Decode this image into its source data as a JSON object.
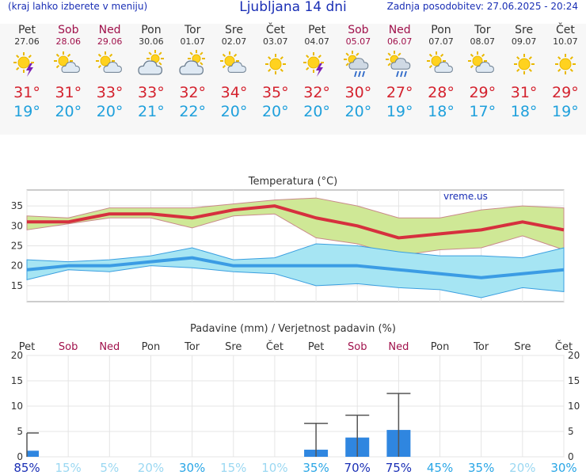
{
  "header": {
    "subtitle": "(kraj lahko izberete v meniju)",
    "title": "Ljubljana 14 dni",
    "updated": "Zadnja posodobitev: 27.06.2025 - 20:24"
  },
  "colors": {
    "max": "#d4232f",
    "min": "#1fa0dc",
    "weekday": "#333333",
    "weekend": "#a0114b",
    "precip_bar": "#2f86e0"
  },
  "days": [
    {
      "name": "Pet",
      "date": "27.06",
      "weekend": false,
      "icon": "sun-storm-icon",
      "max": "31°",
      "min": "19°"
    },
    {
      "name": "Sob",
      "date": "28.06",
      "weekend": true,
      "icon": "sun-cloud-icon",
      "max": "31°",
      "min": "20°"
    },
    {
      "name": "Ned",
      "date": "29.06",
      "weekend": true,
      "icon": "sun-cloud-icon",
      "max": "33°",
      "min": "20°"
    },
    {
      "name": "Pon",
      "date": "30.06",
      "weekend": false,
      "icon": "cloudy-icon",
      "max": "33°",
      "min": "21°"
    },
    {
      "name": "Tor",
      "date": "01.07",
      "weekend": false,
      "icon": "cloudy-icon",
      "max": "32°",
      "min": "22°"
    },
    {
      "name": "Sre",
      "date": "02.07",
      "weekend": false,
      "icon": "sun-cloud-icon",
      "max": "34°",
      "min": "20°"
    },
    {
      "name": "Čet",
      "date": "03.07",
      "weekend": false,
      "icon": "sun-icon",
      "max": "35°",
      "min": "20°"
    },
    {
      "name": "Pet",
      "date": "04.07",
      "weekend": false,
      "icon": "sun-storm-icon",
      "max": "32°",
      "min": "20°"
    },
    {
      "name": "Sob",
      "date": "05.07",
      "weekend": true,
      "icon": "sun-rain-icon",
      "max": "30°",
      "min": "20°"
    },
    {
      "name": "Ned",
      "date": "06.07",
      "weekend": true,
      "icon": "sun-rain-icon",
      "max": "27°",
      "min": "19°"
    },
    {
      "name": "Pon",
      "date": "07.07",
      "weekend": false,
      "icon": "sun-cloud-icon",
      "max": "28°",
      "min": "18°"
    },
    {
      "name": "Tor",
      "date": "08.07",
      "weekend": false,
      "icon": "sun-cloud-icon",
      "max": "29°",
      "min": "17°"
    },
    {
      "name": "Sre",
      "date": "09.07",
      "weekend": false,
      "icon": "sun-icon",
      "max": "31°",
      "min": "18°"
    },
    {
      "name": "Čet",
      "date": "10.07",
      "weekend": false,
      "icon": "sun-icon",
      "max": "29°",
      "min": "19°"
    }
  ],
  "chart_data": [
    {
      "type": "line",
      "title": "Temperatura (°C)",
      "watermark": "vreme.us",
      "ylim": [
        11,
        39
      ],
      "yticks": [
        15,
        20,
        25,
        30,
        35
      ],
      "grid": true,
      "series": [
        {
          "name": "max",
          "values": [
            31,
            31,
            33,
            33,
            32,
            34,
            35,
            32,
            30,
            27,
            28,
            29,
            31,
            29
          ]
        },
        {
          "name": "min",
          "values": [
            19,
            20,
            20,
            21,
            22,
            20,
            20,
            20,
            20,
            19,
            18,
            17,
            18,
            19
          ]
        }
      ],
      "max_band_upper": [
        32.5,
        32,
        34.5,
        34.5,
        34.5,
        35.5,
        36.5,
        37,
        35,
        32,
        32,
        34,
        35,
        34.5
      ],
      "max_band_lower": [
        29,
        30.5,
        32,
        32,
        29.5,
        32.5,
        33,
        27,
        25.5,
        22.5,
        24,
        24.5,
        27.5,
        24
      ],
      "min_band_upper": [
        21.5,
        21,
        21.5,
        22.5,
        24.5,
        21.5,
        22,
        25.5,
        25,
        23.5,
        22.5,
        22.5,
        22,
        24.5
      ],
      "min_band_lower": [
        16.5,
        19,
        18.5,
        20,
        19.5,
        18.5,
        18,
        15,
        15.5,
        14.5,
        14,
        12,
        14.5,
        13.5
      ]
    },
    {
      "type": "bar",
      "title": "Padavine (mm) / Verjetnost padavin (%)",
      "ylim": [
        0,
        20
      ],
      "yticks": [
        0,
        5,
        10,
        15,
        20
      ],
      "grid": true,
      "categories": [
        "Pet",
        "Sob",
        "Ned",
        "Pon",
        "Tor",
        "Sre",
        "Čet",
        "Pet",
        "Sob",
        "Ned",
        "Pon",
        "Tor",
        "Sre",
        "Čet"
      ],
      "weekend": [
        false,
        true,
        true,
        false,
        false,
        false,
        false,
        false,
        true,
        true,
        false,
        false,
        false,
        false
      ],
      "values": [
        1.2,
        0,
        0,
        0,
        0,
        0,
        0,
        1.4,
        3.8,
        5.3,
        0,
        0,
        0,
        0
      ],
      "error_max": [
        4.7,
        0,
        0,
        0,
        0,
        0,
        0,
        6.6,
        8.2,
        12.5,
        0,
        0,
        0,
        0
      ],
      "probability": [
        "85%",
        "15%",
        "5%",
        "20%",
        "30%",
        "15%",
        "10%",
        "35%",
        "70%",
        "75%",
        "45%",
        "35%",
        "20%",
        "30%"
      ],
      "probability_values": [
        85,
        15,
        5,
        20,
        30,
        15,
        10,
        35,
        70,
        75,
        45,
        35,
        20,
        30
      ]
    }
  ]
}
